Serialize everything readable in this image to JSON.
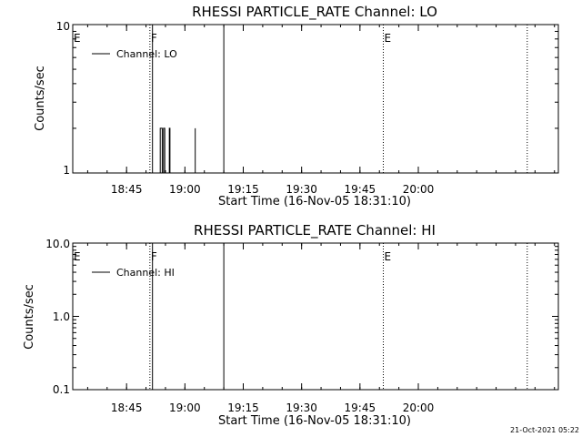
{
  "footer": {
    "timestamp": "21-Oct-2021 05:22"
  },
  "chart_data": [
    {
      "type": "line",
      "title": "RHESSI PARTICLE_RATE Channel: LO",
      "xlabel": "Start Time (16-Nov-05 18:31:10)",
      "ylabel": "Counts/sec",
      "xlim": [
        "18:31:10",
        "20:36:00"
      ],
      "ylim": [
        1,
        10
      ],
      "yscale": "log",
      "x_ticks": [
        "18:45",
        "19:00",
        "19:15",
        "19:30",
        "19:45",
        "20:00"
      ],
      "y_ticks": [
        "1",
        "10"
      ],
      "legend": {
        "label": "Channel: LO",
        "placement": "top-left"
      },
      "markers": [
        {
          "label": "E",
          "time": "18:31:10",
          "style": "dotted"
        },
        {
          "label": "F",
          "time": "18:51:00",
          "style": "dotted"
        },
        {
          "label": "",
          "time": "18:51:40",
          "style": "solid"
        },
        {
          "label": "",
          "time": "19:10:00",
          "style": "solid"
        },
        {
          "label": "E",
          "time": "19:51:00",
          "style": "dotted"
        },
        {
          "label": "",
          "time": "20:28:00",
          "style": "dotted"
        }
      ],
      "series": [
        {
          "name": "Channel: LO",
          "points": [
            [
              "18:53:40",
              1
            ],
            [
              "18:53:40",
              2
            ],
            [
              "18:54:10",
              2
            ],
            [
              "18:54:10",
              1
            ],
            [
              "18:54:30",
              1
            ],
            [
              "18:54:30",
              2
            ],
            [
              "18:54:50",
              2
            ],
            [
              "18:54:50",
              1
            ],
            [
              "18:56:00",
              1
            ],
            [
              "18:56:00",
              2
            ],
            [
              "18:56:10",
              2
            ],
            [
              "18:56:10",
              1
            ],
            [
              "19:02:40",
              1
            ],
            [
              "19:02:40",
              2
            ]
          ]
        }
      ]
    },
    {
      "type": "line",
      "title": "RHESSI PARTICLE_RATE Channel: HI",
      "xlabel": "Start Time (16-Nov-05 18:31:10)",
      "ylabel": "Counts/sec",
      "xlim": [
        "18:31:10",
        "20:36:00"
      ],
      "ylim": [
        0.1,
        10.0
      ],
      "yscale": "log",
      "x_ticks": [
        "18:45",
        "19:00",
        "19:15",
        "19:30",
        "19:45",
        "20:00"
      ],
      "y_ticks": [
        "0.1",
        "1.0",
        "10.0"
      ],
      "legend": {
        "label": "Channel: HI",
        "placement": "top-left"
      },
      "markers": [
        {
          "label": "E",
          "time": "18:31:10",
          "style": "dotted"
        },
        {
          "label": "F",
          "time": "18:51:00",
          "style": "dotted"
        },
        {
          "label": "",
          "time": "18:51:40",
          "style": "solid"
        },
        {
          "label": "",
          "time": "19:10:00",
          "style": "solid"
        },
        {
          "label": "E",
          "time": "19:51:00",
          "style": "dotted"
        },
        {
          "label": "",
          "time": "20:28:00",
          "style": "dotted"
        }
      ],
      "series": [
        {
          "name": "Channel: HI",
          "points": []
        }
      ]
    }
  ]
}
